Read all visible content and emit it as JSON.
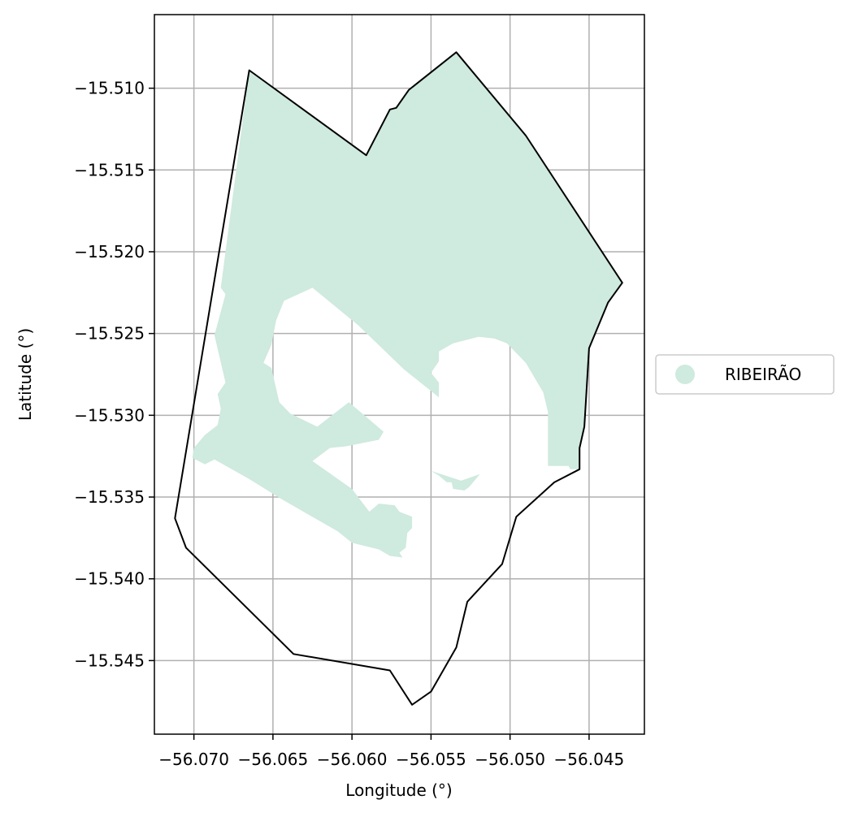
{
  "chart_data": {
    "type": "map",
    "title": "",
    "xlabel": "Longitude (°)",
    "ylabel": "Latitude (°)",
    "xlim": [
      -56.0725,
      -56.0415
    ],
    "ylim": [
      -15.5495,
      -15.5055
    ],
    "grid": true,
    "legend_placement": "right",
    "x_ticks": [
      {
        "value": -56.07,
        "label": "−56.070"
      },
      {
        "value": -56.065,
        "label": "−56.065"
      },
      {
        "value": -56.06,
        "label": "−56.060"
      },
      {
        "value": -56.055,
        "label": "−56.055"
      },
      {
        "value": -56.05,
        "label": "−56.050"
      },
      {
        "value": -56.045,
        "label": "−56.045"
      }
    ],
    "y_ticks": [
      {
        "value": -15.51,
        "label": "−15.510"
      },
      {
        "value": -15.515,
        "label": "−15.515"
      },
      {
        "value": -15.52,
        "label": "−15.520"
      },
      {
        "value": -15.525,
        "label": "−15.525"
      },
      {
        "value": -15.53,
        "label": "−15.530"
      },
      {
        "value": -15.535,
        "label": "−15.535"
      },
      {
        "value": -15.54,
        "label": "−15.540"
      },
      {
        "value": -15.545,
        "label": "−15.545"
      }
    ],
    "legend": [
      {
        "label": "RIBEIRÃO",
        "color": "#cfeade"
      }
    ],
    "colors": {
      "fill": "#cfeade",
      "boundary": "#000000",
      "grid": "#b0b0b0",
      "axes": "#000000"
    },
    "boundary": [
      [
        -56.0665,
        -15.5089
      ],
      [
        -56.0591,
        -15.5141
      ],
      [
        -56.0576,
        -15.5113
      ],
      [
        -56.0572,
        -15.5112
      ],
      [
        -56.0564,
        -15.5101
      ],
      [
        -56.0534,
        -15.5078
      ],
      [
        -56.049,
        -15.5129
      ],
      [
        -56.0429,
        -15.5219
      ],
      [
        -56.0438,
        -15.5231
      ],
      [
        -56.045,
        -15.5259
      ],
      [
        -56.0453,
        -15.5307
      ],
      [
        -56.0456,
        -15.532
      ],
      [
        -56.0456,
        -15.5333
      ],
      [
        -56.0472,
        -15.5341
      ],
      [
        -56.0496,
        -15.5362
      ],
      [
        -56.0505,
        -15.5391
      ],
      [
        -56.0527,
        -15.5414
      ],
      [
        -56.0534,
        -15.5442
      ],
      [
        -56.055,
        -15.5469
      ],
      [
        -56.0562,
        -15.5477
      ],
      [
        -56.0576,
        -15.5456
      ],
      [
        -56.0637,
        -15.5446
      ],
      [
        -56.0705,
        -15.5381
      ],
      [
        -56.0712,
        -15.5363
      ]
    ],
    "territory": [
      [
        [
          -56.0665,
          -15.5089
        ],
        [
          -56.0591,
          -15.5141
        ],
        [
          -56.0576,
          -15.5113
        ],
        [
          -56.0572,
          -15.5112
        ],
        [
          -56.0564,
          -15.5101
        ],
        [
          -56.0534,
          -15.5078
        ],
        [
          -56.049,
          -15.5129
        ],
        [
          -56.0429,
          -15.5219
        ],
        [
          -56.0438,
          -15.5231
        ],
        [
          -56.045,
          -15.5259
        ],
        [
          -56.0453,
          -15.5307
        ],
        [
          -56.0456,
          -15.532
        ],
        [
          -56.0456,
          -15.5333
        ],
        [
          -56.0462,
          -15.5333
        ],
        [
          -56.0463,
          -15.5331
        ],
        [
          -56.0476,
          -15.5331
        ],
        [
          -56.0476,
          -15.5298
        ],
        [
          -56.0479,
          -15.5286
        ],
        [
          -56.049,
          -15.5268
        ],
        [
          -56.0502,
          -15.5256
        ],
        [
          -56.051,
          -15.5253
        ],
        [
          -56.052,
          -15.5252
        ],
        [
          -56.0536,
          -15.5256
        ],
        [
          -56.0545,
          -15.5261
        ],
        [
          -56.0545,
          -15.5267
        ],
        [
          -56.055,
          -15.5274
        ],
        [
          -56.0545,
          -15.528
        ],
        [
          -56.0545,
          -15.5289
        ],
        [
          -56.0567,
          -15.5272
        ],
        [
          -56.0596,
          -15.5245
        ],
        [
          -56.0625,
          -15.5222
        ],
        [
          -56.0643,
          -15.523
        ],
        [
          -56.0648,
          -15.5242
        ],
        [
          -56.0651,
          -15.5257
        ],
        [
          -56.0656,
          -15.5268
        ],
        [
          -56.0651,
          -15.5271
        ],
        [
          -56.0646,
          -15.5292
        ],
        [
          -56.0639,
          -15.5299
        ],
        [
          -56.0622,
          -15.5307
        ],
        [
          -56.0602,
          -15.5292
        ],
        [
          -56.058,
          -15.531
        ],
        [
          -56.0583,
          -15.5315
        ],
        [
          -56.0604,
          -15.5319
        ],
        [
          -56.0614,
          -15.532
        ],
        [
          -56.0625,
          -15.5328
        ],
        [
          -56.06,
          -15.5345
        ],
        [
          -56.0589,
          -15.5359
        ],
        [
          -56.0583,
          -15.5354
        ],
        [
          -56.0573,
          -15.5355
        ],
        [
          -56.057,
          -15.5359
        ],
        [
          -56.0562,
          -15.5362
        ],
        [
          -56.0562,
          -15.5369
        ],
        [
          -56.0565,
          -15.5372
        ],
        [
          -56.0566,
          -15.5381
        ],
        [
          -56.057,
          -15.5384
        ],
        [
          -56.0568,
          -15.5387
        ],
        [
          -56.0576,
          -15.5386
        ],
        [
          -56.0583,
          -15.5382
        ],
        [
          -56.06,
          -15.5378
        ],
        [
          -56.0609,
          -15.5371
        ],
        [
          -56.0627,
          -15.5361
        ],
        [
          -56.0645,
          -15.5351
        ],
        [
          -56.0665,
          -15.5339
        ],
        [
          -56.0687,
          -15.5327
        ],
        [
          -56.0693,
          -15.533
        ],
        [
          -56.0701,
          -15.5326
        ],
        [
          -56.07,
          -15.532
        ],
        [
          -56.0693,
          -15.5312
        ],
        [
          -56.0685,
          -15.5306
        ],
        [
          -56.0683,
          -15.5296
        ],
        [
          -56.0685,
          -15.5287
        ],
        [
          -56.068,
          -15.528
        ],
        [
          -56.0687,
          -15.5251
        ],
        [
          -56.068,
          -15.5226
        ],
        [
          -56.0683,
          -15.5222
        ],
        [
          -56.0665,
          -15.5089
        ]
      ],
      [
        [
          -56.0519,
          -15.5336
        ],
        [
          -56.0526,
          -15.5344
        ],
        [
          -56.0529,
          -15.5346
        ],
        [
          -56.0536,
          -15.5345
        ],
        [
          -56.0537,
          -15.5341
        ],
        [
          -56.054,
          -15.5341
        ],
        [
          -56.0545,
          -15.5337
        ],
        [
          -56.055,
          -15.5334
        ],
        [
          -56.0531,
          -15.534
        ],
        [
          -56.0519,
          -15.5336
        ]
      ]
    ]
  }
}
